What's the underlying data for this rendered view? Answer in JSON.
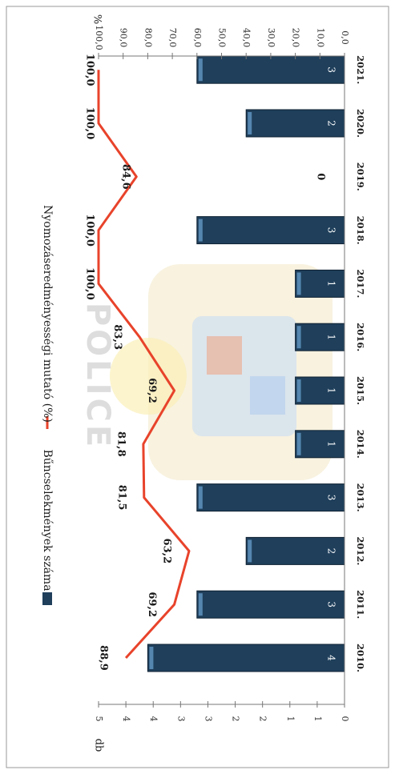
{
  "chart_data": {
    "type": "bar",
    "categories": [
      "2010.",
      "2011.",
      "2012.",
      "2013.",
      "2014.",
      "2015.",
      "2016.",
      "2017.",
      "2018.",
      "2019.",
      "2020.",
      "2021."
    ],
    "series": [
      {
        "name": "Bűncselekmények száma",
        "kind": "bar",
        "axis": "left",
        "values": [
          4,
          3,
          2,
          3,
          1,
          1,
          1,
          1,
          3,
          0,
          2,
          3
        ],
        "labels": [
          "4",
          "3",
          "2",
          "3",
          "1",
          "1",
          "1",
          "1",
          "3",
          "",
          "2",
          "3"
        ],
        "color": "#1f3f5b"
      },
      {
        "name": "Nyomozáseredményességi mutató (%)",
        "kind": "line",
        "axis": "right",
        "values": [
          88.9,
          69.2,
          63.2,
          81.5,
          81.8,
          69.2,
          83.3,
          100.0,
          100.0,
          84.6,
          100.0,
          100.0
        ],
        "labels": [
          "88,9",
          "69,2",
          "63,2",
          "81,5",
          "81,8",
          "69,2",
          "83,3",
          "100,0",
          "100,0",
          "84,6",
          "100,0",
          "100,0"
        ],
        "color": "#e8432b"
      }
    ],
    "zero_label": "0",
    "left_axis": {
      "unit": "db",
      "range": [
        0,
        5
      ],
      "ticks": [
        "0",
        "1",
        "1",
        "2",
        "2",
        "3",
        "3",
        "4",
        "4",
        "5"
      ]
    },
    "right_axis": {
      "unit": "%",
      "range": [
        0,
        100
      ],
      "ticks": [
        "0,0",
        "10,0",
        "20,0",
        "30,0",
        "40,0",
        "50,0",
        "60,0",
        "70,0",
        "80,0",
        "90,0",
        "100,0"
      ]
    },
    "orientation": "rotated 90° clockwise",
    "legend_position": "top",
    "grid": false,
    "watermark": "POLICE"
  }
}
